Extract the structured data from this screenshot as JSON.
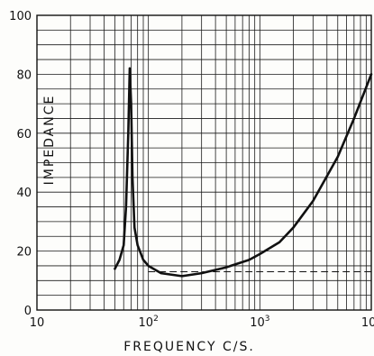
{
  "colors": {
    "background": "#fdfdfb",
    "ink": "#111111",
    "grid": "#1a1a1a"
  },
  "chart_data": {
    "type": "line",
    "title": "",
    "xlabel": "FREQUENCY  C/S.",
    "ylabel": "IMPEDANCE",
    "xscale": "log",
    "xlim": [
      10,
      10000
    ],
    "ylim": [
      0,
      100
    ],
    "grid": true,
    "x_tick_labels": [
      "10",
      "10",
      "10",
      "10"
    ],
    "x_tick_exponents": [
      "",
      "2",
      "3",
      "4"
    ],
    "x_tick_values": [
      10,
      100,
      1000,
      10000
    ],
    "y_tick_labels": [
      "0",
      "20",
      "40",
      "60",
      "80",
      "100"
    ],
    "y_tick_values": [
      0,
      20,
      40,
      60,
      80,
      100
    ],
    "series": [
      {
        "name": "",
        "style": "solid",
        "x": [
          50,
          55,
          60,
          63,
          66,
          68,
          70,
          72,
          75,
          80,
          90,
          100,
          130,
          200,
          300,
          500,
          800,
          1000,
          1500,
          2000,
          3000,
          5000,
          7000,
          10000
        ],
        "y": [
          14,
          17,
          22,
          35,
          60,
          82,
          70,
          45,
          28,
          22,
          17,
          15,
          12.5,
          11.5,
          12.5,
          14.5,
          17,
          19,
          23,
          28,
          37,
          52,
          65,
          80
        ]
      },
      {
        "name": "",
        "style": "dashed",
        "x": [
          100,
          10000
        ],
        "y": [
          13,
          13
        ]
      }
    ]
  }
}
